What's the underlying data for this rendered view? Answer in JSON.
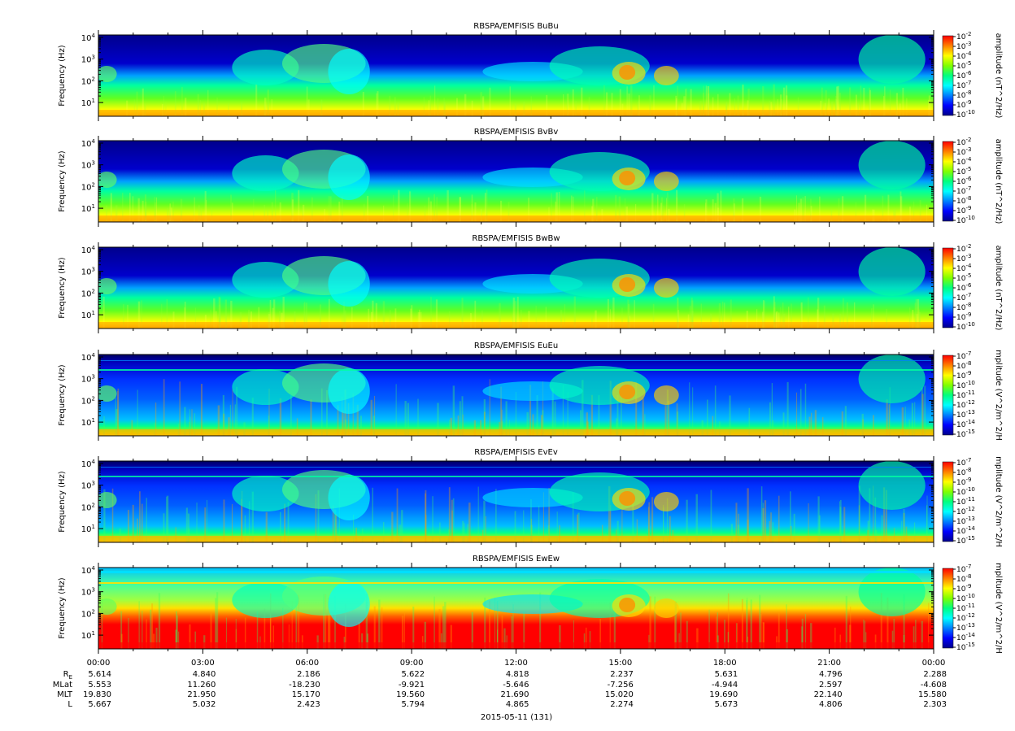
{
  "chart_data": {
    "type": "heatmap",
    "x_ticks": [
      "00:00",
      "03:00",
      "06:00",
      "09:00",
      "12:00",
      "15:00",
      "18:00",
      "21:00",
      "00:00"
    ],
    "y_scale": "log",
    "y_tick_labels": [
      "10^1",
      "10^2",
      "10^3",
      "10^4"
    ],
    "colormap": [
      "#00008c",
      "#0000ff",
      "#0080ff",
      "#00ffff",
      "#00ff80",
      "#80ff00",
      "#ffff00",
      "#ff8000",
      "#ff0000"
    ],
    "panels": [
      {
        "title": "RBSPA/EMFISIS  BuBu",
        "ylabel": "Frequency (Hz)",
        "zlabel": "amplitude (nT^2/Hz)",
        "z_ticks": [
          "10^-2",
          "10^-3",
          "10^-4",
          "10^-5",
          "10^-6",
          "10^-7",
          "10^-8",
          "10^-9",
          "10^-10"
        ]
      },
      {
        "title": "RBSPA/EMFISIS  BvBv",
        "ylabel": "Frequency (Hz)",
        "zlabel": "amplitude (nT^2/Hz)",
        "z_ticks": [
          "10^-2",
          "10^-3",
          "10^-4",
          "10^-5",
          "10^-6",
          "10^-7",
          "10^-8",
          "10^-9",
          "10^-10"
        ]
      },
      {
        "title": "RBSPA/EMFISIS  BwBw",
        "ylabel": "Frequency (Hz)",
        "zlabel": "amplitude (nT^2/Hz)",
        "z_ticks": [
          "10^-2",
          "10^-3",
          "10^-4",
          "10^-5",
          "10^-6",
          "10^-7",
          "10^-8",
          "10^-9",
          "10^-10"
        ]
      },
      {
        "title": "RBSPA/EMFISIS  EuEu",
        "ylabel": "Frequency (Hz)",
        "zlabel": "mplitude (V^2/m^2/H",
        "z_ticks": [
          "10^-7",
          "10^-8",
          "10^-9",
          "10^-10",
          "10^-11",
          "10^-12",
          "10^-13",
          "10^-14",
          "10^-15"
        ]
      },
      {
        "title": "RBSPA/EMFISIS  EvEv",
        "ylabel": "Frequency (Hz)",
        "zlabel": "mplitude (V^2/m^2/H",
        "z_ticks": [
          "10^-7",
          "10^-8",
          "10^-9",
          "10^-10",
          "10^-11",
          "10^-12",
          "10^-13",
          "10^-14",
          "10^-15"
        ]
      },
      {
        "title": "RBSPA/EMFISIS  EwEw",
        "ylabel": "Frequency (Hz)",
        "zlabel": "mplitude (V^2/m^2/H",
        "z_ticks": [
          "10^-7",
          "10^-8",
          "10^-9",
          "10^-10",
          "10^-11",
          "10^-12",
          "10^-13",
          "10^-14",
          "10^-15"
        ]
      }
    ],
    "ephemeris": {
      "labels": [
        "R_E",
        "MLat",
        "MLT",
        "L"
      ],
      "rows": [
        [
          "5.614",
          "4.840",
          "2.186",
          "5.622",
          "4.818",
          "2.237",
          "5.631",
          "4.796",
          "2.288"
        ],
        [
          "5.553",
          "11.260",
          "-18.230",
          "-9.921",
          "-5.646",
          "-7.256",
          "-4.944",
          "2.597",
          "-4.608"
        ],
        [
          "19.830",
          "21.950",
          "15.170",
          "19.560",
          "21.690",
          "15.020",
          "19.690",
          "22.140",
          "15.580"
        ],
        [
          "5.667",
          "5.032",
          "2.423",
          "5.794",
          "4.865",
          "2.274",
          "5.673",
          "4.806",
          "2.303"
        ]
      ]
    },
    "date_label": "2015-05-11 (131)"
  }
}
